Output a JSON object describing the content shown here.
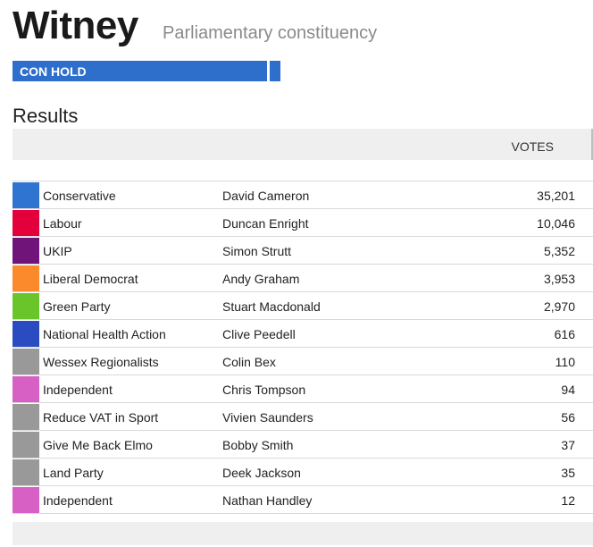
{
  "header": {
    "title": "Witney",
    "subtitle": "Parliamentary constituency"
  },
  "status": {
    "label": "CON HOLD",
    "color": "#2f6fcc"
  },
  "results": {
    "heading": "Results",
    "votes_header": "VOTES",
    "rows": [
      {
        "party": "Conservative",
        "candidate": "David Cameron",
        "votes": "35,201",
        "color": "#2f74d0"
      },
      {
        "party": "Labour",
        "candidate": "Duncan Enright",
        "votes": "10,046",
        "color": "#e4003b"
      },
      {
        "party": "UKIP",
        "candidate": "Simon Strutt",
        "votes": "5,352",
        "color": "#70147a"
      },
      {
        "party": "Liberal Democrat",
        "candidate": "Andy Graham",
        "votes": "3,953",
        "color": "#fa8a2b"
      },
      {
        "party": "Green Party",
        "candidate": "Stuart Macdonald",
        "votes": "2,970",
        "color": "#6ac52a"
      },
      {
        "party": "National Health Action",
        "candidate": "Clive Peedell",
        "votes": "616",
        "color": "#2b4cc0"
      },
      {
        "party": "Wessex Regionalists",
        "candidate": "Colin Bex",
        "votes": "110",
        "color": "#999999"
      },
      {
        "party": "Independent",
        "candidate": "Chris Tompson",
        "votes": "94",
        "color": "#d660c4"
      },
      {
        "party": "Reduce VAT in Sport",
        "candidate": "Vivien Saunders",
        "votes": "56",
        "color": "#999999"
      },
      {
        "party": "Give Me Back Elmo",
        "candidate": "Bobby Smith",
        "votes": "37",
        "color": "#999999"
      },
      {
        "party": "Land Party",
        "candidate": "Deek Jackson",
        "votes": "35",
        "color": "#999999"
      },
      {
        "party": "Independent",
        "candidate": "Nathan Handley",
        "votes": "12",
        "color": "#d660c4"
      }
    ]
  }
}
